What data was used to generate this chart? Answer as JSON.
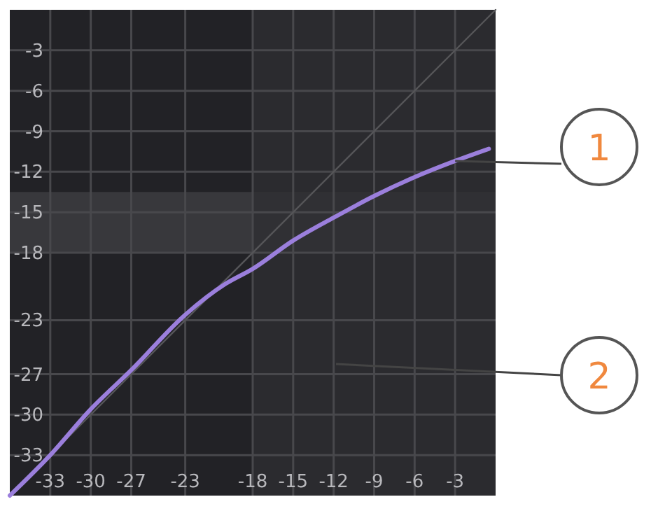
{
  "chart_data": {
    "type": "line",
    "xlim": [
      -36,
      0
    ],
    "ylim": [
      -36,
      0
    ],
    "xticks": [
      -33,
      -30,
      -27,
      -23,
      -18,
      -15,
      -12,
      -9,
      -6,
      -3
    ],
    "yticks": [
      -3,
      -6,
      -9,
      -12,
      -15,
      -18,
      -23,
      -27,
      -30,
      -33
    ],
    "grid": true,
    "bands": [
      {
        "axis": "y",
        "from": -18,
        "to": -13.5,
        "color": "#3e3e42"
      },
      {
        "axis": "x",
        "from": -18,
        "to": 0,
        "color": "#2e2e32"
      }
    ],
    "series": [
      {
        "color": "#555558",
        "x": [
          -36,
          0
        ],
        "values": [
          -36,
          0
        ]
      },
      {
        "color": "#9b7fdc",
        "x": [
          -36,
          -33,
          -30,
          -27,
          -23,
          -20,
          -18,
          -15,
          -12,
          -9,
          -6,
          -3,
          -0.5
        ],
        "values": [
          -36,
          -33,
          -29.6,
          -26.7,
          -22.6,
          -20.3,
          -19.2,
          -17.1,
          -15.4,
          -13.8,
          -12.4,
          -11.2,
          -10.3
        ]
      }
    ],
    "annotations": [
      {
        "text": "1",
        "x": -3,
        "y": -11.2
      },
      "2"
    ]
  }
}
